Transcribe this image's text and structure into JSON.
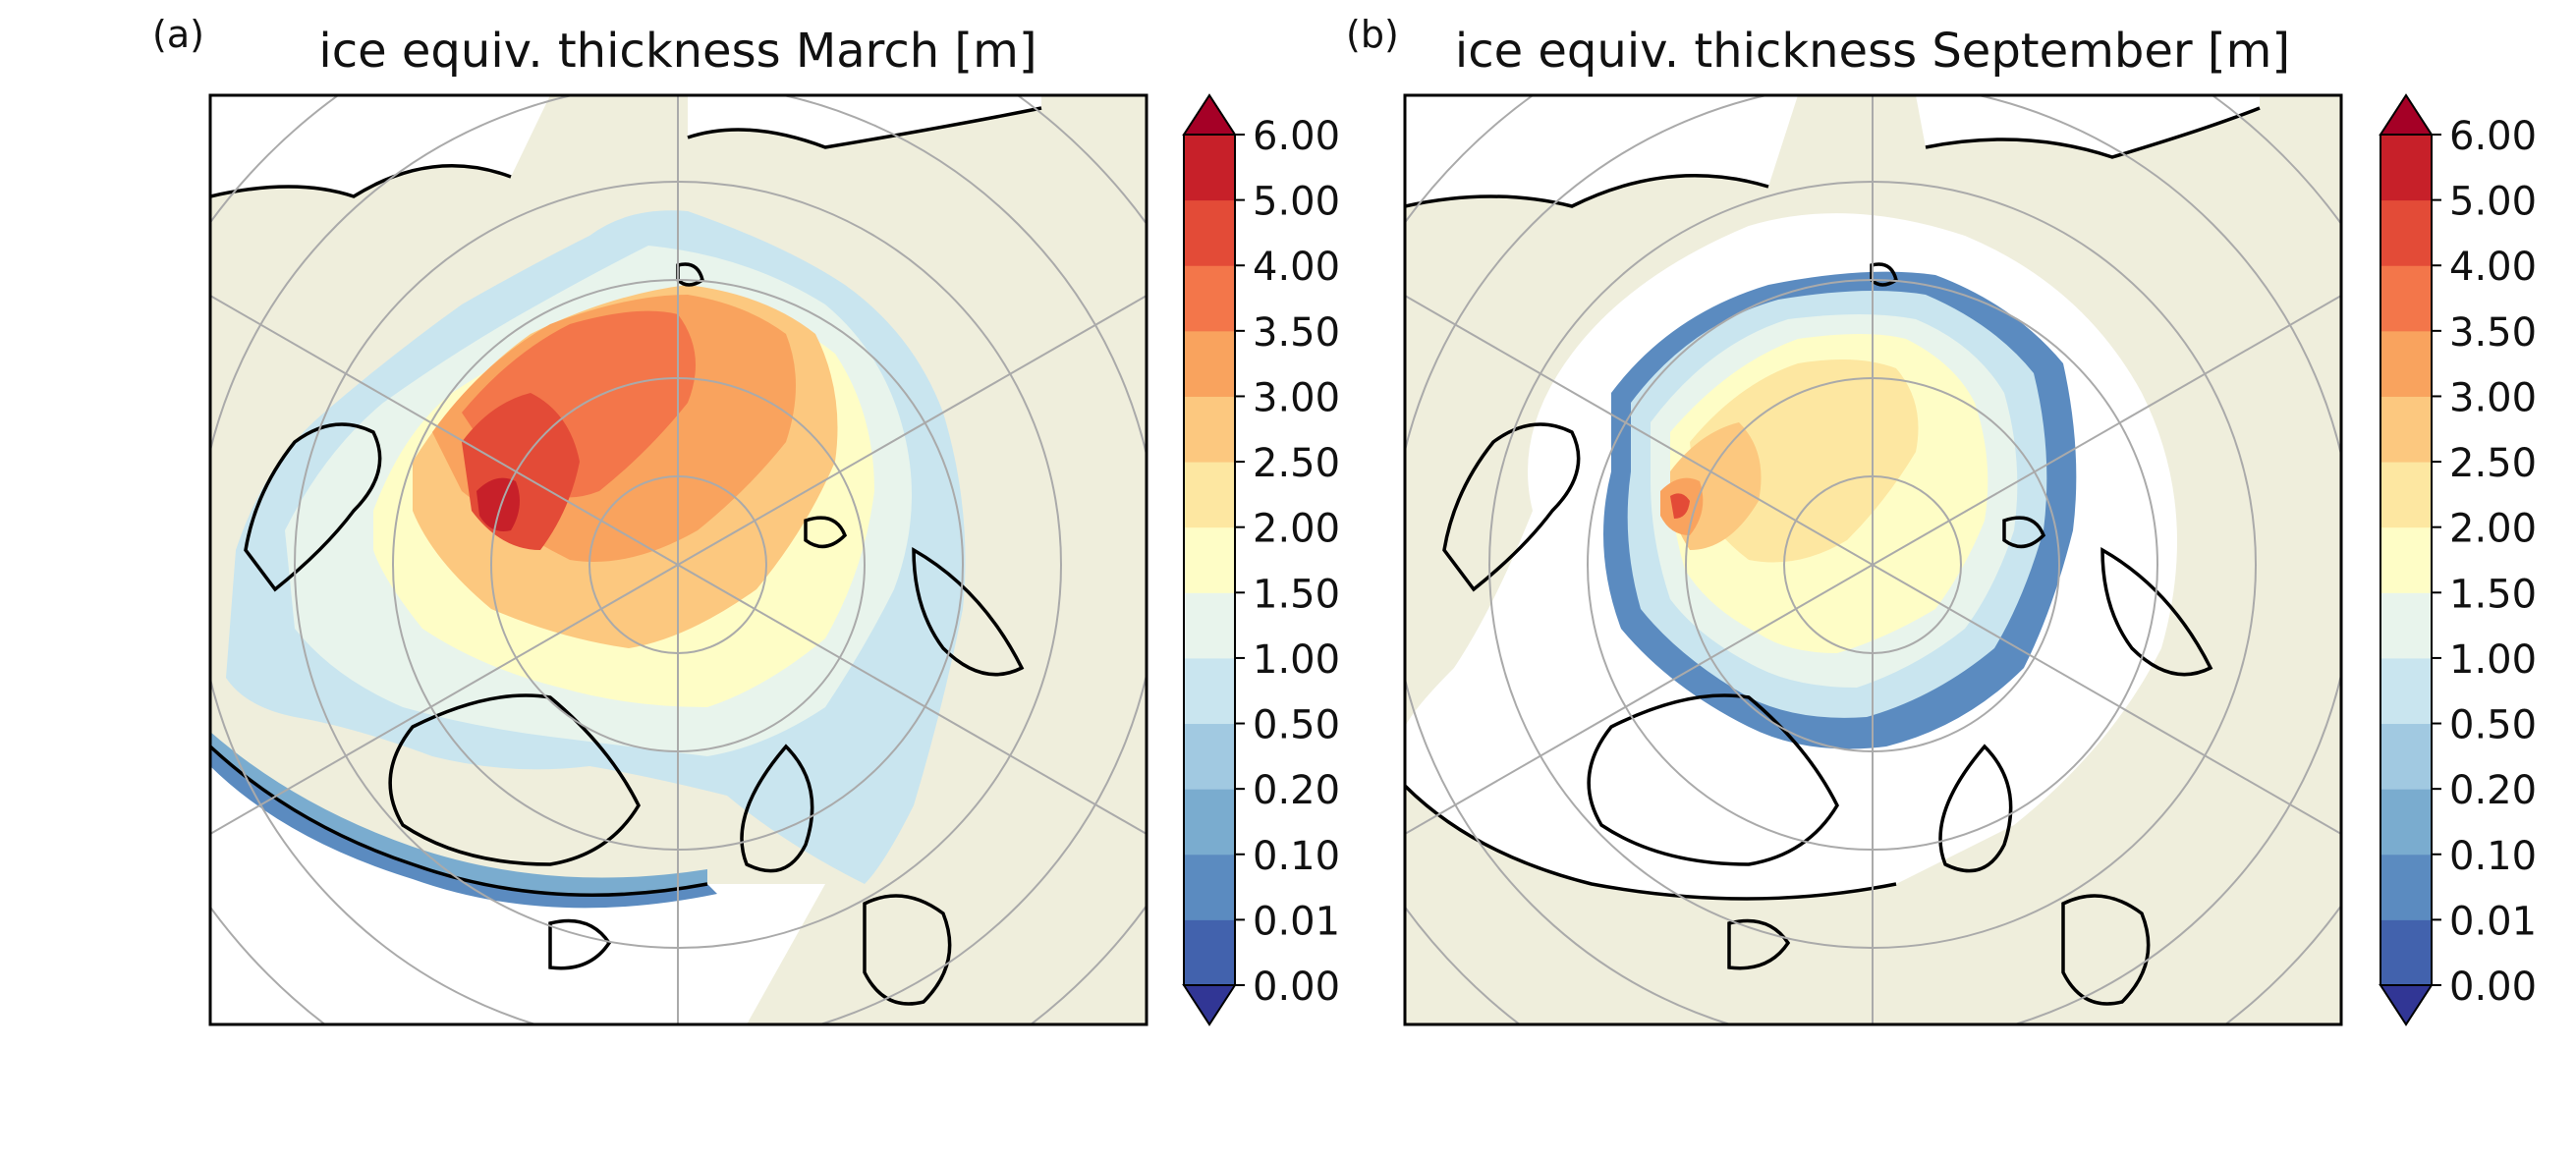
{
  "figure": {
    "panels": [
      {
        "id": "a",
        "label": "(a)",
        "title": "ice equiv. thickness March [m]",
        "month": "March",
        "thickness_class_description": "thick ice (2.5–4.0 m) across central Arctic, up to 5 m north of Canadian Archipelago; thin ice (<0.5 m) at marginal seas"
      },
      {
        "id": "b",
        "label": "(b)",
        "title": "ice equiv. thickness September [m]",
        "month": "September",
        "thickness_class_description": "reduced ice cover, 1.5–2.5 m in central Arctic, thicker near Canadian Archipelago, thin margins"
      }
    ],
    "colorbar": {
      "ticks": [
        "0.00",
        "0.01",
        "0.10",
        "0.20",
        "0.50",
        "1.00",
        "1.50",
        "2.00",
        "2.50",
        "3.00",
        "3.50",
        "4.00",
        "5.00",
        "6.00"
      ],
      "colors": [
        "#4262ad",
        "#5b8bc0",
        "#7aaccf",
        "#a1c9e1",
        "#c9e5ef",
        "#e8f4ec",
        "#fefdc6",
        "#fde7a1",
        "#fcc87f",
        "#f9a35e",
        "#f3764a",
        "#e34b37",
        "#c72029"
      ],
      "under_color": "#313695",
      "over_color": "#a50026",
      "extend": "both"
    },
    "colors": {
      "land": "#efeedc",
      "ocean": "#ffffff",
      "coast": "#000000",
      "grid": "#aaaaaa"
    }
  }
}
